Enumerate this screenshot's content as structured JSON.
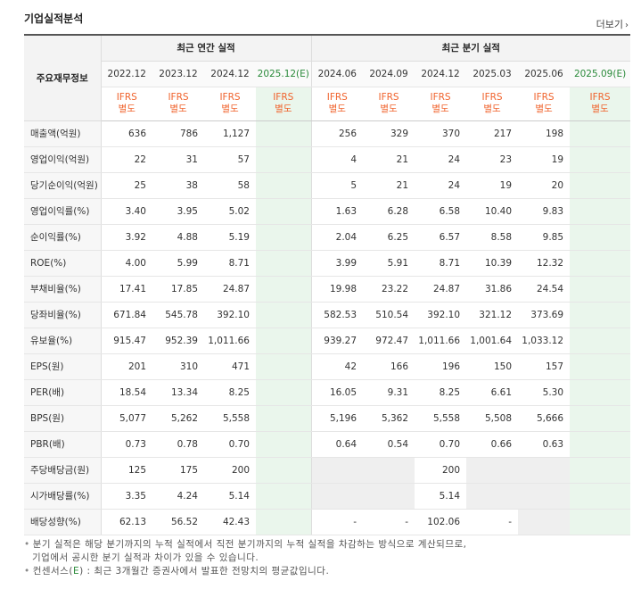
{
  "header": {
    "title": "기업실적분석",
    "more_label": "더보기"
  },
  "table": {
    "row_header": "주요재무정보",
    "annual_label": "최근 연간 실적",
    "quarter_label": "최근 분기 실적",
    "annual_periods": [
      "2022.12",
      "2023.12",
      "2024.12",
      "2025.12(E)"
    ],
    "quarter_periods": [
      "2024.06",
      "2024.09",
      "2024.12",
      "2025.03",
      "2025.06",
      "2025.09(E)"
    ],
    "ifrs_label": "IFRS",
    "ifrs_sub": "별도",
    "rows": [
      {
        "label": "매출액(억원)",
        "values": [
          "636",
          "786",
          "1,127",
          "",
          "256",
          "329",
          "370",
          "217",
          "198",
          ""
        ]
      },
      {
        "label": "영업이익(억원)",
        "values": [
          "22",
          "31",
          "57",
          "",
          "4",
          "21",
          "24",
          "23",
          "19",
          ""
        ]
      },
      {
        "label": "당기순이익(억원)",
        "values": [
          "25",
          "38",
          "58",
          "",
          "5",
          "21",
          "24",
          "19",
          "20",
          ""
        ]
      },
      {
        "label": "영업이익률(%)",
        "values": [
          "3.40",
          "3.95",
          "5.02",
          "",
          "1.63",
          "6.28",
          "6.58",
          "10.40",
          "9.83",
          ""
        ]
      },
      {
        "label": "순이익률(%)",
        "values": [
          "3.92",
          "4.88",
          "5.19",
          "",
          "2.04",
          "6.25",
          "6.57",
          "8.58",
          "9.85",
          ""
        ]
      },
      {
        "label": "ROE(%)",
        "values": [
          "4.00",
          "5.99",
          "8.71",
          "",
          "3.99",
          "5.91",
          "8.71",
          "10.39",
          "12.32",
          ""
        ]
      },
      {
        "label": "부채비율(%)",
        "values": [
          "17.41",
          "17.85",
          "24.87",
          "",
          "19.98",
          "23.22",
          "24.87",
          "31.86",
          "24.54",
          ""
        ]
      },
      {
        "label": "당좌비율(%)",
        "values": [
          "671.84",
          "545.78",
          "392.10",
          "",
          "582.53",
          "510.54",
          "392.10",
          "321.12",
          "373.69",
          ""
        ]
      },
      {
        "label": "유보율(%)",
        "values": [
          "915.47",
          "952.39",
          "1,011.66",
          "",
          "939.27",
          "972.47",
          "1,011.66",
          "1,001.64",
          "1,033.12",
          ""
        ]
      },
      {
        "label": "EPS(원)",
        "values": [
          "201",
          "310",
          "471",
          "",
          "42",
          "166",
          "196",
          "150",
          "157",
          ""
        ]
      },
      {
        "label": "PER(배)",
        "values": [
          "18.54",
          "13.34",
          "8.25",
          "",
          "16.05",
          "9.31",
          "8.25",
          "6.61",
          "5.30",
          ""
        ]
      },
      {
        "label": "BPS(원)",
        "values": [
          "5,077",
          "5,262",
          "5,558",
          "",
          "5,196",
          "5,362",
          "5,558",
          "5,508",
          "5,666",
          ""
        ]
      },
      {
        "label": "PBR(배)",
        "values": [
          "0.73",
          "0.78",
          "0.70",
          "",
          "0.64",
          "0.54",
          "0.70",
          "0.66",
          "0.63",
          ""
        ]
      },
      {
        "label": "주당배당금(원)",
        "values": [
          "125",
          "175",
          "200",
          "",
          "",
          "",
          "200",
          "",
          "",
          ""
        ]
      },
      {
        "label": "시가배당률(%)",
        "values": [
          "3.35",
          "4.24",
          "5.14",
          "",
          "",
          "",
          "5.14",
          "",
          "",
          ""
        ]
      },
      {
        "label": "배당성향(%)",
        "values": [
          "62.13",
          "56.52",
          "42.43",
          "",
          "-",
          "-",
          "102.06",
          "-",
          "",
          ""
        ]
      }
    ]
  },
  "notes": {
    "line1": "분기 실적은 해당 분기까지의 누적 실적에서 직전 분기까지의 누적 실적을 차감하는 방식으로 계산되므로,",
    "line2": "기업에서 공시한 분기 실적과 차이가 있을 수 있습니다.",
    "line3_prefix": "컨센서스(",
    "line3_e": "E",
    "line3_suffix": ") : 최근 3개월간 증권사에서 발표한 전망치의 평균값입니다."
  }
}
